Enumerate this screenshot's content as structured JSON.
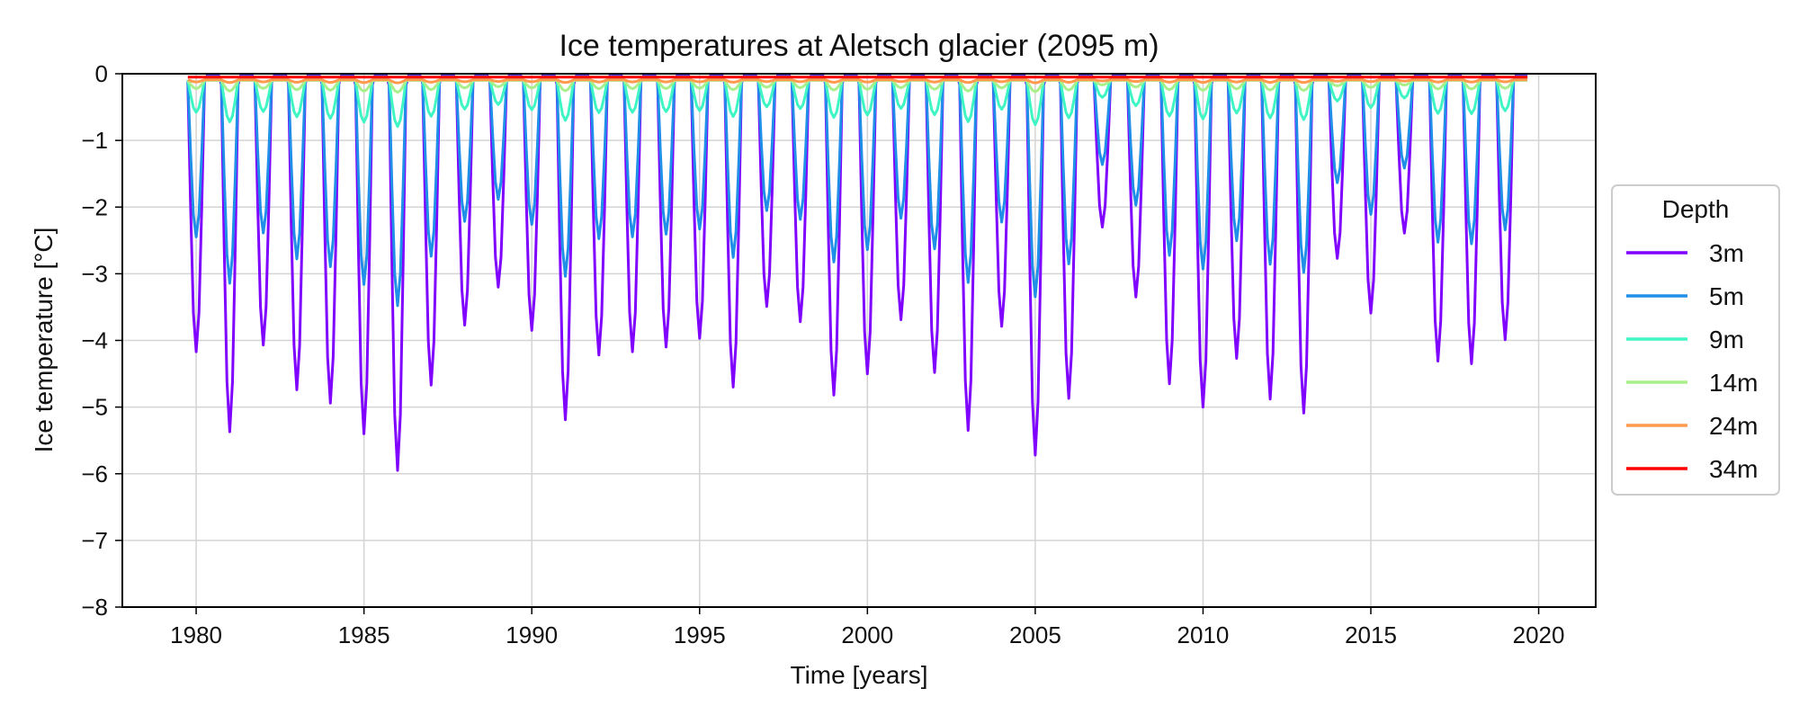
{
  "chart_data": {
    "type": "line",
    "title": "Ice temperatures at Aletsch glacier (2095 m)",
    "xlabel": "Time [years]",
    "ylabel": "Ice temperature [°C]",
    "xlim": [
      1977.8,
      2021.7
    ],
    "ylim": [
      -8,
      0
    ],
    "xticks": [
      1980,
      1985,
      1990,
      1995,
      2000,
      2005,
      2010,
      2015,
      2020
    ],
    "xtick_labels": [
      "1980",
      "1985",
      "1990",
      "1995",
      "2000",
      "2005",
      "2010",
      "2015",
      "2020"
    ],
    "yticks": [
      0,
      -1,
      -2,
      -3,
      -4,
      -5,
      -6,
      -7,
      -8
    ],
    "ytick_labels": [
      "0",
      "−1",
      "−2",
      "−3",
      "−4",
      "−5",
      "−6",
      "−7",
      "−8"
    ],
    "grid": true,
    "legend": {
      "title": "Depth",
      "placement": "right-outside"
    },
    "x_start": 1979.75,
    "x_end": 2019.7,
    "annual_min_3m": [
      -4.15,
      -5.35,
      -4.05,
      -4.72,
      -4.92,
      -5.38,
      -5.93,
      -4.65,
      -3.75,
      -3.18,
      -3.83,
      -5.17,
      -4.2,
      -4.15,
      -4.08,
      -3.95,
      -4.68,
      -3.47,
      -3.7,
      -4.8,
      -4.48,
      -3.67,
      -4.46,
      -5.33,
      -3.77,
      -5.7,
      -4.85,
      -2.28,
      -3.33,
      -4.63,
      -4.98,
      -4.25,
      -4.86,
      -5.07,
      -2.75,
      -3.57,
      -2.37,
      -4.29,
      -4.33,
      -3.97
    ],
    "series": [
      {
        "name": "3m",
        "color": "#7f00ff",
        "amp_factor": 1.0,
        "floor": -0.02
      },
      {
        "name": "5m",
        "color": "#1f8fe8",
        "amp_factor": 0.58,
        "floor": -0.04
      },
      {
        "name": "9m",
        "color": "#3ff5c4",
        "amp_factor": 0.12,
        "floor": -0.08
      },
      {
        "name": "14m",
        "color": "#a9f08c",
        "amp_factor": 0.03,
        "floor": -0.1
      },
      {
        "name": "24m",
        "color": "#ff9a4e",
        "amp_factor": 0.008,
        "floor": -0.09
      },
      {
        "name": "34m",
        "color": "#ff0000",
        "amp_factor": 0.0,
        "floor": -0.05
      }
    ]
  }
}
